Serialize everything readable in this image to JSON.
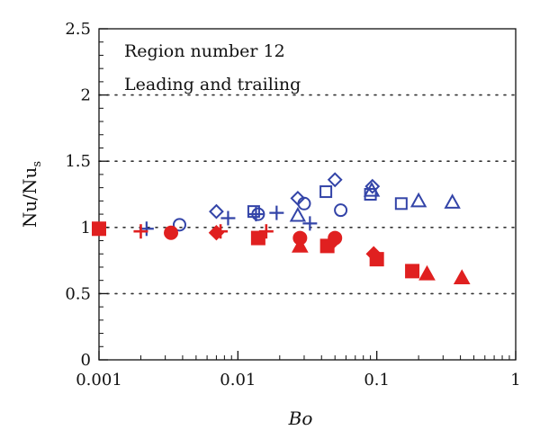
{
  "chart_data": {
    "type": "scatter",
    "xscale": "log",
    "xlim": [
      0.001,
      1
    ],
    "ylim": [
      0,
      2.5
    ],
    "xlabel": "Bo",
    "ylabel_main": "Nu/Nu",
    "ylabel_sub": "s",
    "x_tick_labels": [
      "0.001",
      "0.01",
      "0.1",
      "1"
    ],
    "y_tick_labels": [
      "0",
      "0.5",
      "1",
      "1.5",
      "2",
      "2.5"
    ],
    "gridlines_y": [
      0.5,
      1.0,
      1.5,
      2.0
    ],
    "annotations": [
      "Region number 12",
      "Leading and trailing"
    ],
    "colors": {
      "blue": "#3344a8",
      "red": "#e02020"
    },
    "series": [
      {
        "marker": "cross-blue",
        "color": "#3344a8",
        "filled": false,
        "points": [
          [
            0.0022,
            0.99
          ],
          [
            0.0085,
            1.07
          ],
          [
            0.0135,
            1.1
          ],
          [
            0.019,
            1.11
          ],
          [
            0.033,
            1.03
          ]
        ]
      },
      {
        "marker": "circle-blue",
        "color": "#3344a8",
        "filled": false,
        "points": [
          [
            0.0038,
            1.02
          ],
          [
            0.014,
            1.1
          ],
          [
            0.03,
            1.18
          ],
          [
            0.055,
            1.13
          ]
        ]
      },
      {
        "marker": "diamond-blue",
        "color": "#3344a8",
        "filled": false,
        "points": [
          [
            0.007,
            1.12
          ],
          [
            0.027,
            1.22
          ],
          [
            0.05,
            1.36
          ],
          [
            0.093,
            1.31
          ]
        ]
      },
      {
        "marker": "square-blue",
        "color": "#3344a8",
        "filled": false,
        "points": [
          [
            0.013,
            1.12
          ],
          [
            0.043,
            1.27
          ],
          [
            0.09,
            1.25
          ],
          [
            0.15,
            1.18
          ]
        ]
      },
      {
        "marker": "triangle-blue",
        "color": "#3344a8",
        "filled": false,
        "points": [
          [
            0.027,
            1.09
          ],
          [
            0.092,
            1.28
          ],
          [
            0.2,
            1.2
          ],
          [
            0.35,
            1.19
          ]
        ]
      },
      {
        "marker": "cross-red",
        "color": "#e02020",
        "filled": true,
        "points": [
          [
            0.002,
            0.97
          ],
          [
            0.0075,
            0.97
          ],
          [
            0.016,
            0.97
          ]
        ]
      },
      {
        "marker": "circle-red",
        "color": "#e02020",
        "filled": true,
        "points": [
          [
            0.0033,
            0.96
          ],
          [
            0.028,
            0.92
          ],
          [
            0.05,
            0.92
          ]
        ]
      },
      {
        "marker": "diamond-red",
        "color": "#e02020",
        "filled": true,
        "points": [
          [
            0.007,
            0.96
          ],
          [
            0.048,
            0.89
          ],
          [
            0.095,
            0.8
          ]
        ]
      },
      {
        "marker": "square-red",
        "color": "#e02020",
        "filled": true,
        "points": [
          [
            0.001,
            0.99
          ],
          [
            0.014,
            0.92
          ],
          [
            0.044,
            0.86
          ],
          [
            0.1,
            0.76
          ],
          [
            0.18,
            0.67
          ]
        ]
      },
      {
        "marker": "triangle-red",
        "color": "#e02020",
        "filled": true,
        "points": [
          [
            0.028,
            0.86
          ],
          [
            0.23,
            0.65
          ],
          [
            0.41,
            0.62
          ]
        ]
      }
    ]
  }
}
